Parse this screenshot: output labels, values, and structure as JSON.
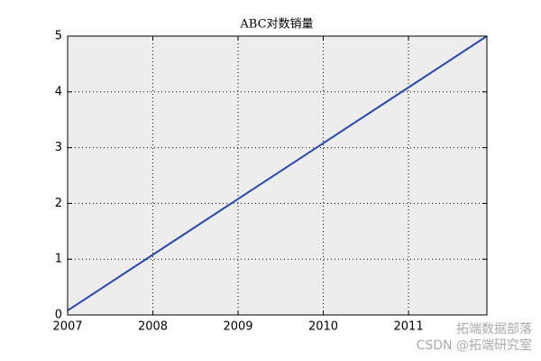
{
  "chart_data": {
    "type": "line",
    "title": "ABC对数销量",
    "x": [
      2007,
      2008,
      2009,
      2010,
      2011,
      2011.92
    ],
    "series": [
      {
        "color": "#2746b5",
        "values": [
          0.08,
          1.08,
          2.08,
          3.08,
          4.08,
          5
        ]
      }
    ],
    "xlim": [
      2007,
      2011.92
    ],
    "xticks": [
      2007,
      2008,
      2009,
      2010,
      2011
    ],
    "ylim": [
      0,
      5
    ],
    "yticks": [
      0,
      1,
      2,
      3,
      4,
      5
    ],
    "grid": true
  },
  "watermarks": [
    "拓端数据部落",
    "CSDN @拓端研究室"
  ]
}
